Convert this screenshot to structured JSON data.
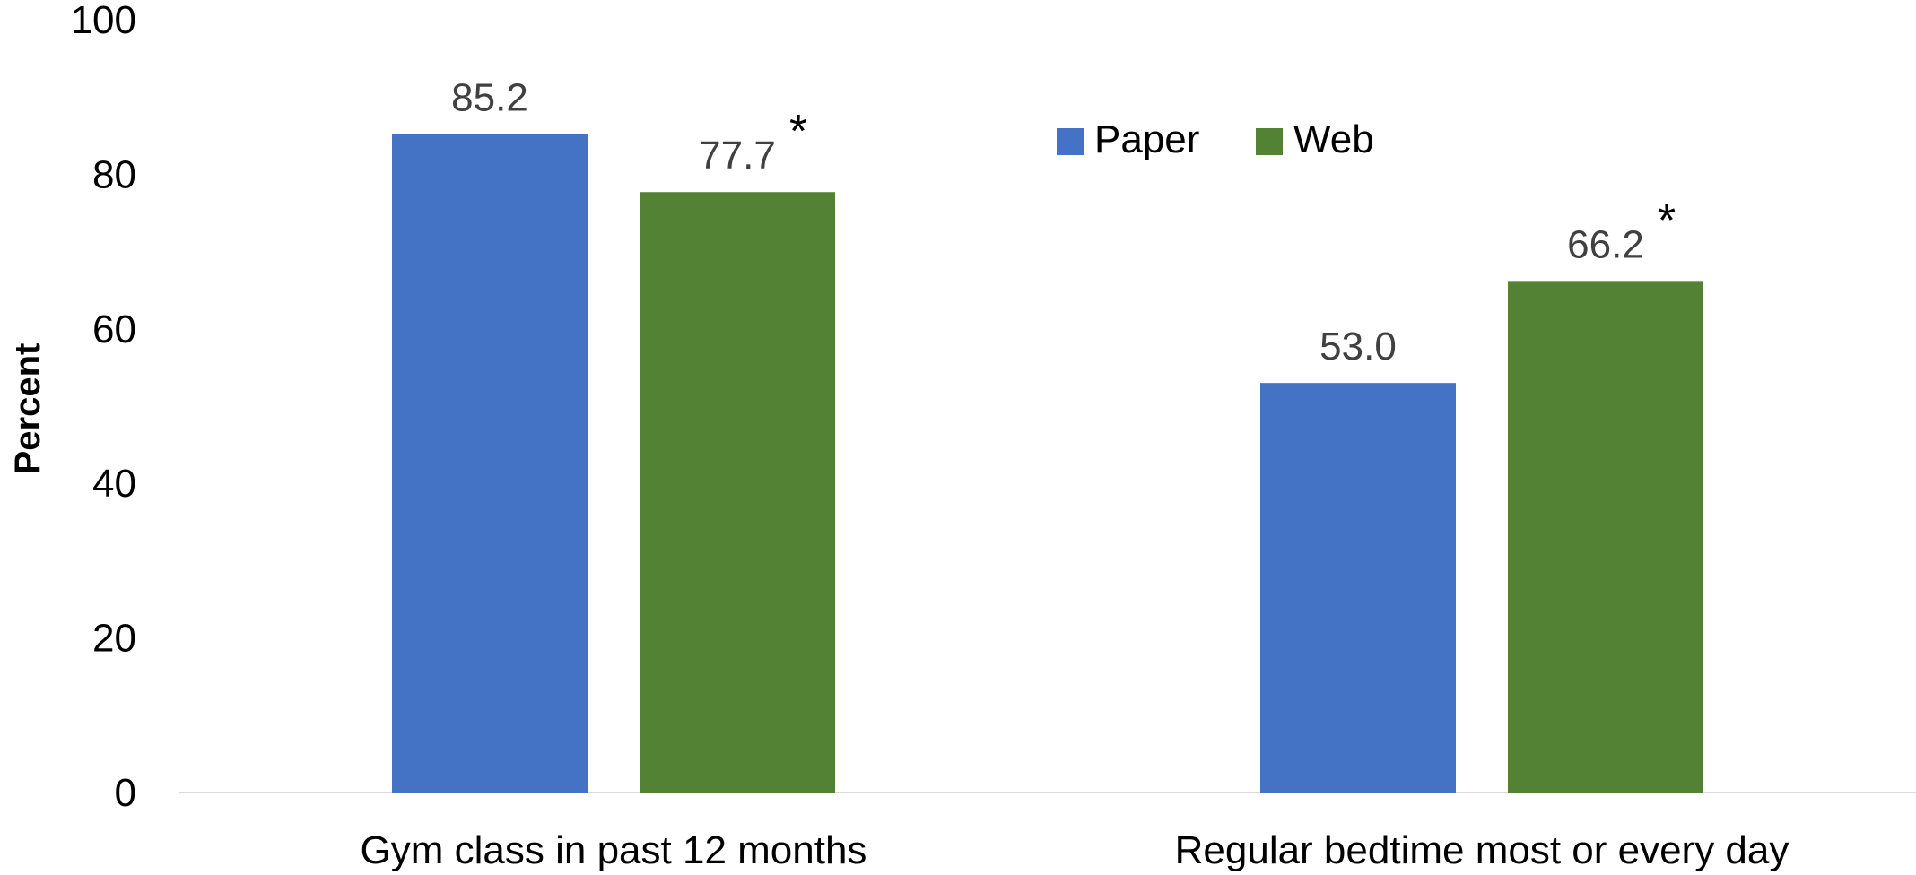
{
  "chart_data": {
    "type": "bar",
    "categories": [
      "Gym class in past 12 months",
      "Regular bedtime most or every day"
    ],
    "series": [
      {
        "name": "Paper",
        "color": "#4472C4",
        "values": [
          85.2,
          53.0
        ],
        "labels": [
          "85.2",
          "53.0"
        ],
        "marks": [
          "",
          ""
        ]
      },
      {
        "name": "Web",
        "color": "#548235",
        "values": [
          77.7,
          66.2
        ],
        "labels": [
          "77.7",
          "66.2"
        ],
        "marks": [
          "*",
          "*"
        ]
      }
    ],
    "ylabel": "Percent",
    "ylim": [
      0,
      100
    ],
    "yticks": [
      0,
      20,
      40,
      60,
      80,
      100
    ],
    "legend_position": "top-right",
    "grid": false
  }
}
